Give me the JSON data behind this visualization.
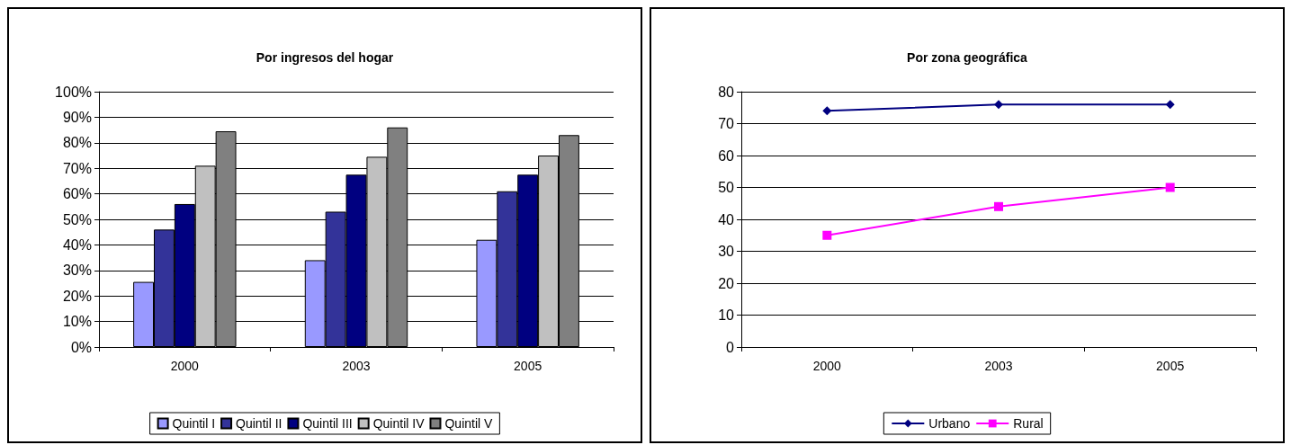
{
  "chart_data": [
    {
      "type": "bar",
      "title": "Por ingresos del hogar",
      "categories": [
        "2000",
        "2003",
        "2005"
      ],
      "series": [
        {
          "name": "Quintil I",
          "color": "#9999ff",
          "values": [
            25.5,
            34,
            42
          ]
        },
        {
          "name": "Quintil II",
          "color": "#333399",
          "values": [
            46,
            53,
            61
          ]
        },
        {
          "name": "Quintil III",
          "color": "#000080",
          "values": [
            56,
            67.5,
            67.5
          ]
        },
        {
          "name": "Quintil IV",
          "color": "#c0c0c0",
          "values": [
            71,
            74.5,
            75
          ]
        },
        {
          "name": "Quintil V",
          "color": "#808080",
          "values": [
            84.5,
            86,
            83
          ]
        }
      ],
      "ylim": [
        0,
        100
      ],
      "yticks": [
        {
          "value": 0,
          "label": "0%"
        },
        {
          "value": 10,
          "label": "10%"
        },
        {
          "value": 20,
          "label": "20%"
        },
        {
          "value": 30,
          "label": "30%"
        },
        {
          "value": 40,
          "label": "40%"
        },
        {
          "value": 50,
          "label": "50%"
        },
        {
          "value": 60,
          "label": "60%"
        },
        {
          "value": 70,
          "label": "70%"
        },
        {
          "value": 80,
          "label": "80%"
        },
        {
          "value": 90,
          "label": "90%"
        },
        {
          "value": 100,
          "label": "100%"
        }
      ],
      "grid": "y",
      "legend": "bottom"
    },
    {
      "type": "line",
      "title": "Por zona geográfica",
      "categories": [
        "2000",
        "2003",
        "2005"
      ],
      "series": [
        {
          "name": "Urbano",
          "color": "#000080",
          "values": [
            74,
            76,
            76
          ],
          "marker": "diamond"
        },
        {
          "name": "Rural",
          "color": "#ff00ff",
          "values": [
            35,
            44,
            50
          ],
          "marker": "square"
        }
      ],
      "ylim": [
        0,
        80
      ],
      "yticks": [
        0,
        10,
        20,
        30,
        40,
        50,
        60,
        70,
        80
      ],
      "grid": "y",
      "legend": "bottom"
    }
  ]
}
